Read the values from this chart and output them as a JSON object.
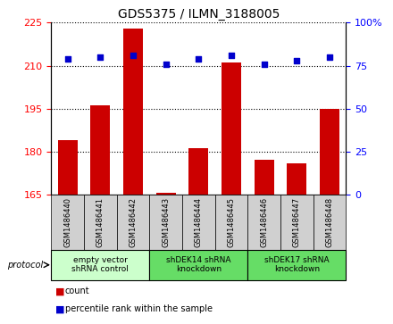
{
  "title": "GDS5375 / ILMN_3188005",
  "samples": [
    "GSM1486440",
    "GSM1486441",
    "GSM1486442",
    "GSM1486443",
    "GSM1486444",
    "GSM1486445",
    "GSM1486446",
    "GSM1486447",
    "GSM1486448"
  ],
  "counts": [
    184,
    196,
    223,
    165.5,
    181,
    211,
    177,
    176,
    195
  ],
  "percentile_ranks": [
    79,
    80,
    81,
    76,
    79,
    81,
    76,
    78,
    80
  ],
  "ylim_left": [
    165,
    225
  ],
  "ylim_right": [
    0,
    100
  ],
  "yticks_left": [
    165,
    180,
    195,
    210,
    225
  ],
  "yticks_right": [
    0,
    25,
    50,
    75,
    100
  ],
  "bar_color": "#cc0000",
  "dot_color": "#0000cc",
  "groups": [
    {
      "label": "empty vector\nshRNA control",
      "start": 0,
      "end": 3,
      "color": "#ccffcc"
    },
    {
      "label": "shDEK14 shRNA\nknockdown",
      "start": 3,
      "end": 6,
      "color": "#66dd66"
    },
    {
      "label": "shDEK17 shRNA\nknockdown",
      "start": 6,
      "end": 9,
      "color": "#66dd66"
    }
  ],
  "sample_box_color": "#d0d0d0",
  "protocol_label": "protocol",
  "legend_count_label": "count",
  "legend_percentile_label": "percentile rank within the sample",
  "background_color": "#ffffff",
  "title_fontsize": 10
}
